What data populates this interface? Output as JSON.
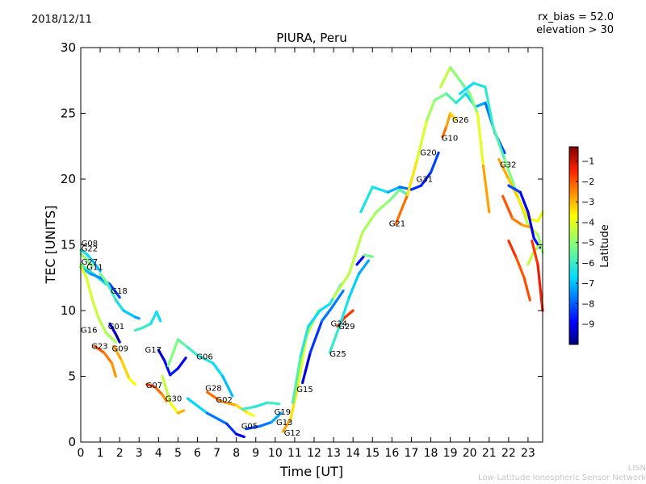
{
  "header": {
    "date": "2018/12/11",
    "bias": "rx_bias = 52.0",
    "elevation": "elevation > 30"
  },
  "footer": {
    "org_short": "LISN",
    "org_full": "Low-Latitude Ionospheric Sensor Network"
  },
  "chart_data": {
    "type": "scatter",
    "title": "PIURA, Peru",
    "xlabel": "Time [UT]",
    "ylabel": "TEC [UNITS]",
    "xlim": [
      0,
      23.75
    ],
    "ylim": [
      0,
      30
    ],
    "xticks": [
      0,
      1,
      2,
      3,
      4,
      5,
      6,
      7,
      8,
      9,
      10,
      11,
      12,
      13,
      14,
      15,
      16,
      17,
      18,
      19,
      20,
      21,
      22,
      23
    ],
    "yticks": [
      0,
      5,
      10,
      15,
      20,
      25,
      30
    ],
    "grid": false,
    "colorbar": {
      "label": "Latitude",
      "min": -10,
      "max": -0.3,
      "ticks": [
        -1,
        -2,
        -3,
        -4,
        -5,
        -6,
        -7,
        -8,
        -9
      ],
      "colors": [
        "#00007f",
        "#0000ff",
        "#007fff",
        "#00dcff",
        "#7fff7f",
        "#dcff00",
        "#ffc400",
        "#ff4d00",
        "#d40000",
        "#7f0000"
      ]
    },
    "series": [
      {
        "name": "G08",
        "label_at": [
          0.03,
          14.9
        ],
        "points": [
          [
            0.0,
            14.6,
            -6.2
          ],
          [
            0.3,
            14.3,
            -6.4
          ],
          [
            0.6,
            13.8,
            -6.8
          ],
          [
            1.0,
            13.0,
            -7.2
          ]
        ]
      },
      {
        "name": "G22",
        "label_at": [
          0.03,
          14.5
        ],
        "points": [
          [
            0.0,
            14.3,
            -4.8
          ],
          [
            0.3,
            13.9,
            -5.0
          ],
          [
            0.6,
            13.4,
            -5.3
          ]
        ]
      },
      {
        "name": "G27",
        "label_at": [
          0.03,
          13.5
        ],
        "points": [
          [
            0.0,
            13.5,
            -5.5
          ],
          [
            0.4,
            13.1,
            -5.8
          ],
          [
            0.8,
            12.6,
            -6.1
          ],
          [
            1.3,
            12.0,
            -6.5
          ]
        ]
      },
      {
        "name": "G11",
        "label_at": [
          0.3,
          13.1
        ],
        "points": [
          [
            0.0,
            13.3,
            -6.8
          ],
          [
            0.5,
            12.8,
            -7.2
          ],
          [
            1.0,
            12.5,
            -7.6
          ],
          [
            1.5,
            12.0,
            -8.0
          ],
          [
            2.0,
            11.0,
            -8.5
          ]
        ]
      },
      {
        "name": "G18",
        "label_at": [
          1.55,
          11.3
        ],
        "points": [
          [
            1.0,
            12.8,
            -5.0
          ],
          [
            1.4,
            12.0,
            -5.6
          ],
          [
            1.8,
            10.8,
            -6.2
          ],
          [
            2.2,
            10.0,
            -6.7
          ],
          [
            2.8,
            9.5,
            -7.1
          ],
          [
            3.0,
            9.4,
            -7.3
          ]
        ]
      },
      {
        "name": "G16",
        "label_at": [
          0.0,
          8.3
        ],
        "points": [
          [
            0.0,
            13.4,
            -4.0
          ],
          [
            0.3,
            12.5,
            -4.1
          ],
          [
            0.6,
            10.8,
            -4.2
          ],
          [
            0.9,
            9.5,
            -4.4
          ],
          [
            1.3,
            8.3,
            -4.6
          ],
          [
            1.8,
            7.6,
            -4.8
          ]
        ]
      },
      {
        "name": "G23",
        "label_at": [
          0.55,
          7.1
        ],
        "points": [
          [
            0.7,
            7.3,
            -1.8
          ],
          [
            1.2,
            6.8,
            -2.2
          ],
          [
            1.6,
            6.0,
            -2.5
          ],
          [
            1.8,
            5.0,
            -2.8
          ]
        ]
      },
      {
        "name": "G01",
        "label_at": [
          1.4,
          8.6
        ],
        "points": [
          [
            1.5,
            9.0,
            -9.0
          ],
          [
            1.8,
            8.2,
            -9.5
          ],
          [
            2.0,
            7.6,
            -9.8
          ]
        ]
      },
      {
        "name": "G09",
        "label_at": [
          1.6,
          6.9
        ],
        "points": [
          [
            1.7,
            7.3,
            -2.6
          ],
          [
            2.1,
            6.2,
            -3.0
          ],
          [
            2.5,
            4.8,
            -3.5
          ],
          [
            2.8,
            4.4,
            -3.8
          ]
        ]
      },
      {
        "name": "G17",
        "label_at": [
          3.3,
          6.8
        ],
        "points": [
          [
            2.8,
            8.5,
            -6.0
          ],
          [
            3.2,
            8.7,
            -5.8
          ],
          [
            3.6,
            9.0,
            -6.3
          ],
          [
            3.9,
            9.9,
            -6.5
          ],
          [
            4.1,
            9.2,
            -6.7
          ]
        ]
      },
      {
        "name": "G07",
        "label_at": [
          3.35,
          4.1
        ],
        "points": [
          [
            3.4,
            4.4,
            -1.5
          ],
          [
            3.8,
            4.2,
            -2.0
          ],
          [
            4.2,
            3.6,
            -2.4
          ],
          [
            4.4,
            3.1,
            -2.8
          ]
        ]
      },
      {
        "name": "G30",
        "label_at": [
          4.35,
          3.1
        ],
        "points": [
          [
            4.0,
            7.0,
            -9.5
          ],
          [
            4.3,
            6.2,
            -9.0
          ],
          [
            4.6,
            5.1,
            -8.6
          ],
          [
            5.0,
            5.6,
            -8.8
          ],
          [
            5.4,
            6.4,
            -9.2
          ]
        ]
      },
      {
        "name": "G06",
        "label_at": [
          5.95,
          6.3
        ],
        "points": [
          [
            4.5,
            5.8,
            -5.0
          ],
          [
            5.0,
            7.8,
            -5.3
          ],
          [
            5.5,
            7.2,
            -5.8
          ],
          [
            6.0,
            6.6,
            -6.2
          ],
          [
            6.8,
            6.0,
            -6.4
          ],
          [
            7.3,
            5.0,
            -6.8
          ],
          [
            7.8,
            3.5,
            -7.2
          ]
        ]
      },
      {
        "name": "G28",
        "label_at": [
          6.4,
          3.9
        ],
        "points": [
          [
            4.2,
            5.0,
            -4.2
          ],
          [
            4.6,
            3.0,
            -4.6
          ],
          [
            5.0,
            2.2,
            -3.0
          ],
          [
            5.3,
            2.4,
            -2.8
          ]
        ]
      },
      {
        "name": "G02",
        "label_at": [
          6.95,
          3.0
        ],
        "points": [
          [
            6.5,
            3.8,
            -2.0
          ],
          [
            7.2,
            3.1,
            -2.5
          ],
          [
            8.0,
            2.8,
            -3.0
          ],
          [
            8.6,
            2.2,
            -3.6
          ],
          [
            8.9,
            2.0,
            -4.0
          ]
        ]
      },
      {
        "name": "G05",
        "label_at": [
          8.25,
          1.0
        ],
        "points": [
          [
            5.5,
            3.3,
            -6.0
          ],
          [
            6.5,
            2.2,
            -7.5
          ],
          [
            7.5,
            1.4,
            -8.0
          ],
          [
            8.0,
            0.6,
            -8.8
          ],
          [
            8.4,
            0.4,
            -9.4
          ]
        ]
      },
      {
        "name": "G19",
        "label_at": [
          9.95,
          2.1
        ],
        "points": [
          [
            8.5,
            1.0,
            -8.5
          ],
          [
            9.2,
            1.2,
            -8.0
          ],
          [
            9.8,
            1.5,
            -7.5
          ],
          [
            10.3,
            2.2,
            -7.0
          ]
        ]
      },
      {
        "name": "G13",
        "label_at": [
          10.05,
          1.3
        ],
        "points": [
          [
            8.3,
            2.5,
            -5.5
          ],
          [
            9.0,
            2.7,
            -6.5
          ],
          [
            9.6,
            3.0,
            -6.0
          ],
          [
            10.2,
            2.9,
            -5.8
          ]
        ]
      },
      {
        "name": "G12",
        "label_at": [
          10.45,
          0.5
        ],
        "points": [
          [
            10.4,
            0.8,
            -2.5
          ],
          [
            10.8,
            1.8,
            -3.0
          ],
          [
            11.2,
            4.5,
            -3.8
          ],
          [
            11.6,
            8.0,
            -4.3
          ],
          [
            12.2,
            10.0,
            -4.8
          ]
        ]
      },
      {
        "name": "G15",
        "label_at": [
          11.1,
          3.8
        ],
        "points": [
          [
            10.9,
            3.0,
            -5.5
          ],
          [
            11.3,
            6.5,
            -6.0
          ],
          [
            11.7,
            8.8,
            -6.5
          ],
          [
            12.3,
            10.0,
            -6.8
          ],
          [
            12.8,
            10.5,
            -6.5
          ],
          [
            13.4,
            12.0,
            -6.0
          ]
        ]
      },
      {
        "name": "G24",
        "label_at": [
          12.85,
          8.8
        ],
        "points": [
          [
            11.4,
            4.5,
            -9.5
          ],
          [
            11.8,
            6.8,
            -8.8
          ],
          [
            12.4,
            9.2,
            -8.0
          ],
          [
            12.9,
            10.2,
            -7.5
          ],
          [
            13.5,
            11.5,
            -7.8
          ]
        ]
      },
      {
        "name": "G29",
        "label_at": [
          13.25,
          8.6
        ],
        "points": [
          [
            13.2,
            8.8,
            -1.8
          ],
          [
            13.6,
            9.5,
            -1.7
          ],
          [
            14.0,
            10.0,
            -1.6
          ]
        ]
      },
      {
        "name": "G25",
        "label_at": [
          12.8,
          6.5
        ],
        "points": [
          [
            12.8,
            6.8,
            -6.0
          ],
          [
            13.3,
            8.8,
            -6.2
          ],
          [
            13.8,
            11.0,
            -6.6
          ],
          [
            14.3,
            12.8,
            -7.0
          ],
          [
            14.8,
            13.8,
            -7.4
          ]
        ]
      },
      {
        "name": "G21",
        "label_at": [
          15.85,
          16.4
        ],
        "points": [
          [
            13.0,
            11.0,
            -4.5
          ],
          [
            13.8,
            12.8,
            -4.4
          ],
          [
            14.5,
            16.0,
            -4.6
          ],
          [
            15.2,
            17.5,
            -4.8
          ],
          [
            15.9,
            18.4,
            -5.0
          ],
          [
            16.4,
            19.2,
            -5.5
          ],
          [
            16.8,
            18.8,
            -6.0
          ]
        ]
      },
      {
        "name": "G31",
        "label_at": [
          17.25,
          19.8
        ],
        "points": [
          [
            14.4,
            17.5,
            -6.5
          ],
          [
            15.0,
            19.4,
            -6.2
          ],
          [
            15.8,
            19.0,
            -6.8
          ],
          [
            16.4,
            19.4,
            -7.5
          ],
          [
            17.0,
            19.2,
            -8.2
          ],
          [
            17.5,
            19.5,
            -8.8
          ],
          [
            18.0,
            20.5,
            -8.5
          ],
          [
            18.4,
            22.0,
            -8.0
          ]
        ]
      },
      {
        "name": "G20",
        "label_at": [
          17.45,
          21.8
        ],
        "points": [
          [
            16.2,
            16.6,
            -1.5
          ],
          [
            16.8,
            18.8,
            -3.0
          ],
          [
            17.3,
            21.5,
            -3.8
          ],
          [
            17.8,
            24.5,
            -4.5
          ],
          [
            18.2,
            26.0,
            -5.0
          ],
          [
            18.8,
            26.5,
            -5.5
          ],
          [
            19.3,
            25.8,
            -6.0
          ],
          [
            19.8,
            26.5,
            -6.5
          ],
          [
            20.3,
            25.5,
            -7.0
          ],
          [
            20.8,
            25.8,
            -7.5
          ],
          [
            21.3,
            23.5,
            -8.0
          ],
          [
            21.8,
            22.0,
            -8.4
          ]
        ]
      },
      {
        "name": "G10",
        "label_at": [
          18.55,
          22.9
        ],
        "points": [
          [
            18.6,
            23.2,
            -2.0
          ],
          [
            18.8,
            24.0,
            -2.5
          ],
          [
            19.0,
            25.0,
            -3.0
          ],
          [
            19.3,
            24.5,
            -3.5
          ]
        ]
      },
      {
        "name": "G26",
        "label_at": [
          19.1,
          24.3
        ],
        "points": [
          [
            18.5,
            27.0,
            -4.0
          ],
          [
            19.0,
            28.5,
            -4.8
          ],
          [
            19.5,
            27.5,
            -5.2
          ],
          [
            20.0,
            26.5,
            -5.6
          ],
          [
            20.4,
            25.0,
            -4.5
          ],
          [
            20.7,
            21.0,
            -3.5
          ],
          [
            21.0,
            17.5,
            -2.0
          ]
        ]
      },
      {
        "name": "G32",
        "label_at": [
          21.55,
          20.9
        ],
        "points": [
          [
            19.5,
            26.5,
            -6.8
          ],
          [
            20.2,
            27.3,
            -6.5
          ],
          [
            20.8,
            27.0,
            -6.2
          ],
          [
            21.2,
            24.0,
            -6.0
          ],
          [
            21.8,
            21.5,
            -5.5
          ],
          [
            22.4,
            19.0,
            -4.8
          ],
          [
            23.0,
            16.5,
            -4.2
          ],
          [
            23.5,
            15.8,
            -4.6
          ],
          [
            23.75,
            14.4,
            -5.0
          ]
        ]
      },
      {
        "name": "",
        "label_at": null,
        "points": [
          [
            21.5,
            21.5,
            -2.6
          ],
          [
            22.0,
            20.0,
            -3.0
          ],
          [
            22.5,
            18.5,
            -3.3
          ],
          [
            23.0,
            17.0,
            -3.6
          ],
          [
            23.5,
            16.8,
            -3.8
          ],
          [
            23.75,
            17.5,
            -3.9
          ]
        ]
      },
      {
        "name": "",
        "label_at": null,
        "points": [
          [
            21.7,
            18.7,
            -1.8
          ],
          [
            22.2,
            17.0,
            -2.2
          ],
          [
            22.7,
            16.5,
            -2.6
          ],
          [
            23.2,
            16.3,
            -2.9
          ]
        ]
      },
      {
        "name": "",
        "label_at": null,
        "points": [
          [
            22.0,
            15.3,
            -1.4
          ],
          [
            22.4,
            14.0,
            -1.8
          ],
          [
            22.8,
            12.5,
            -2.2
          ],
          [
            23.1,
            10.8,
            -1.6
          ]
        ]
      },
      {
        "name": "",
        "label_at": null,
        "points": [
          [
            22.0,
            19.5,
            -7.8
          ],
          [
            22.6,
            19.0,
            -8.6
          ],
          [
            23.0,
            17.5,
            -9.2
          ],
          [
            23.3,
            15.5,
            -9.0
          ],
          [
            23.6,
            14.8,
            -8.5
          ]
        ]
      },
      {
        "name": "",
        "label_at": null,
        "points": [
          [
            23.0,
            13.5,
            -4.3
          ],
          [
            23.3,
            14.5,
            -4.5
          ],
          [
            23.6,
            15.0,
            -4.7
          ]
        ]
      },
      {
        "name": "",
        "label_at": null,
        "points": [
          [
            23.2,
            15.3,
            -1.8
          ],
          [
            23.5,
            13.5,
            -1.5
          ],
          [
            23.75,
            10.0,
            -1.2
          ]
        ]
      },
      {
        "name": "",
        "label_at": null,
        "points": [
          [
            14.2,
            13.5,
            -8.6
          ],
          [
            14.6,
            14.2,
            -9.0
          ],
          [
            15.0,
            14.1,
            -1.6
          ]
        ]
      }
    ]
  }
}
